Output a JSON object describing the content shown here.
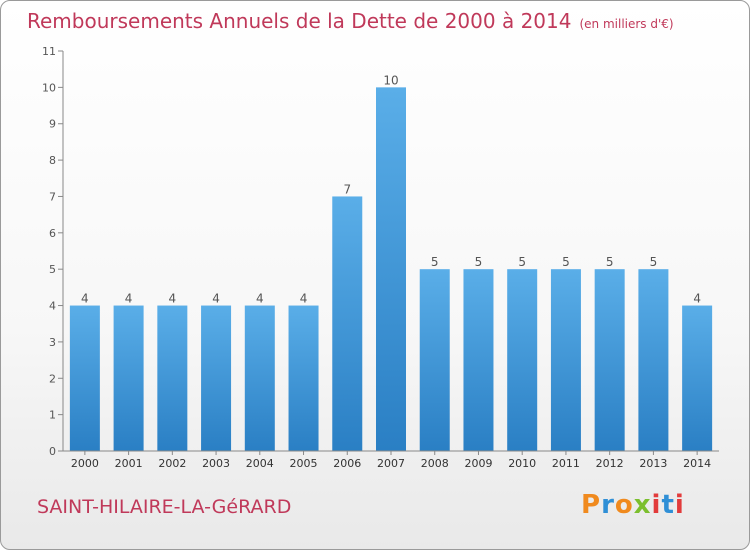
{
  "header": {
    "title": "Remboursements Annuels de la Dette de 2000 à 2014",
    "unit": "(en milliers d'€)"
  },
  "footer": {
    "place": "SAINT-HILAIRE-LA-GéRARD",
    "logo": "Proxiti"
  },
  "colors": {
    "title": "#c0395a",
    "bar_light": "#5aaee8",
    "bar_dark": "#2a7fc4",
    "logo_letters": [
      "#f08a1e",
      "#2f8fd6",
      "#f08a1e",
      "#7cbf2e",
      "#e23b3b",
      "#2f8fd6",
      "#e23b3b"
    ]
  },
  "chart_data": {
    "type": "bar",
    "categories": [
      "2000",
      "2001",
      "2002",
      "2003",
      "2004",
      "2005",
      "2006",
      "2007",
      "2008",
      "2009",
      "2010",
      "2011",
      "2012",
      "2013",
      "2014"
    ],
    "values": [
      4,
      4,
      4,
      4,
      4,
      4,
      7,
      10,
      5,
      5,
      5,
      5,
      5,
      5,
      4
    ],
    "data_labels": [
      "4",
      "4",
      "4",
      "4",
      "4",
      "4",
      "7",
      "10",
      "5",
      "5",
      "5",
      "5",
      "5",
      "5",
      "4"
    ],
    "yticks": [
      0,
      1,
      2,
      3,
      4,
      5,
      6,
      7,
      8,
      9,
      10,
      11
    ],
    "ylim": [
      0,
      11
    ],
    "grid": false,
    "legend": "none"
  }
}
